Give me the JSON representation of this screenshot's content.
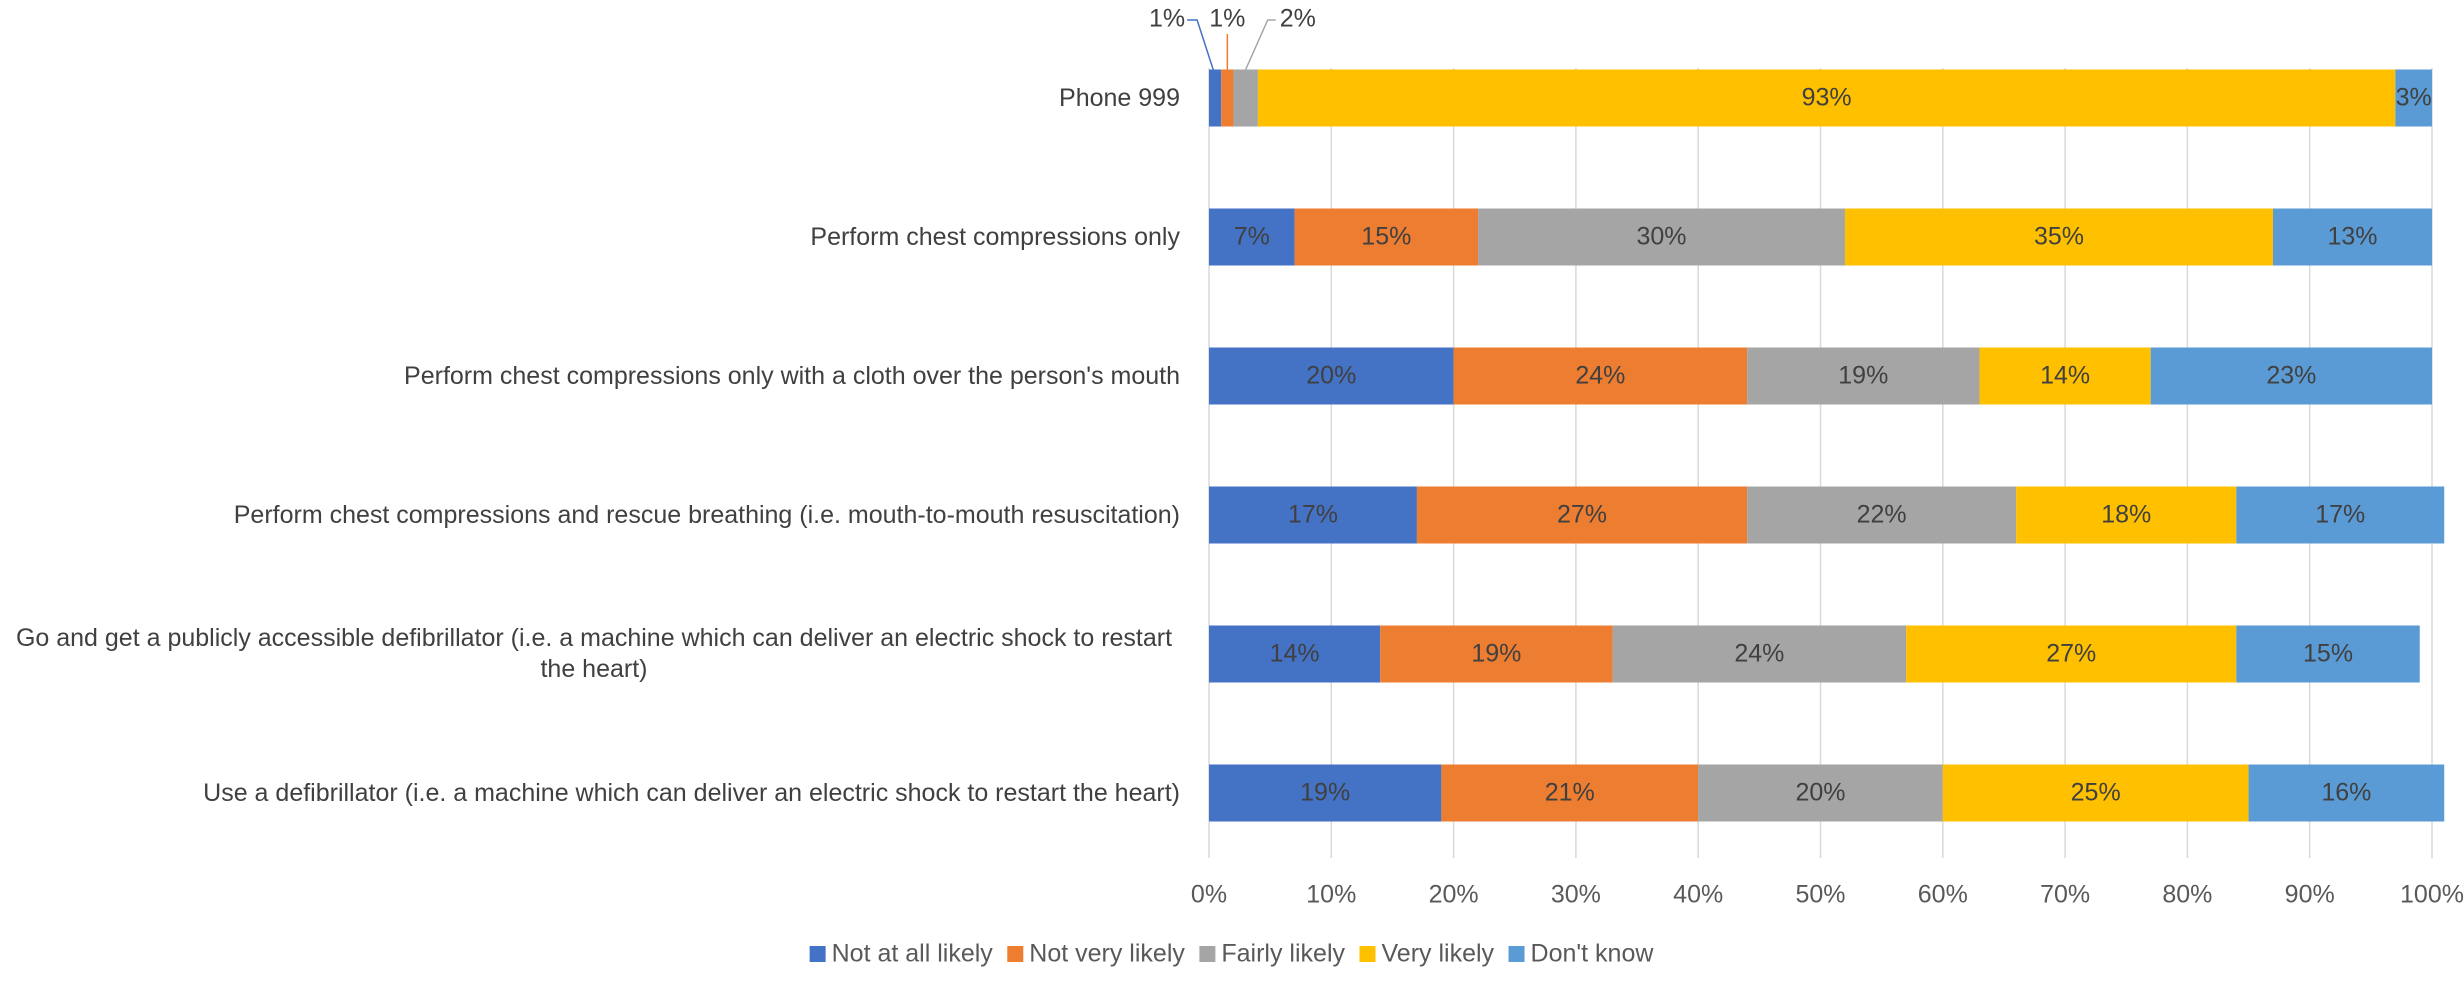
{
  "chart_data": {
    "type": "stacked_bar_horizontal",
    "categories": [
      "Phone 999",
      "Perform chest compressions only",
      "Perform chest compressions only with a cloth over the person's mouth",
      "Perform chest compressions and rescue breathing (i.e. mouth-to-mouth resuscitation)",
      "Go and get a publicly accessible defibrillator (i.e. a machine which can deliver an electric shock to restart the heart)",
      "Use a defibrillator (i.e. a machine which can deliver an electric shock to restart the heart)"
    ],
    "series": [
      {
        "name": "Not at all likely",
        "color": "#4472c4",
        "values": [
          1,
          7,
          20,
          17,
          14,
          19
        ],
        "value_labels": [
          "1%",
          "7%",
          "20%",
          "17%",
          "14%",
          "19%"
        ]
      },
      {
        "name": "Not very likely",
        "color": "#ed7d31",
        "values": [
          1,
          15,
          24,
          27,
          19,
          21
        ],
        "value_labels": [
          "1%",
          "15%",
          "24%",
          "27%",
          "19%",
          "21%"
        ]
      },
      {
        "name": "Fairly likely",
        "color": "#a5a5a5",
        "values": [
          2,
          30,
          19,
          22,
          24,
          20
        ],
        "value_labels": [
          "2%",
          "30%",
          "19%",
          "22%",
          "24%",
          "20%"
        ]
      },
      {
        "name": "Very likely",
        "color": "#ffc000",
        "values": [
          93,
          35,
          14,
          18,
          27,
          25
        ],
        "value_labels": [
          "93%",
          "35%",
          "14%",
          "18%",
          "27%",
          "25%"
        ]
      },
      {
        "name": "Don't know",
        "color": "#5b9bd5",
        "values": [
          3,
          13,
          23,
          17,
          15,
          16
        ],
        "value_labels": [
          "3%",
          "13%",
          "23%",
          "17%",
          "15%",
          "16%"
        ]
      }
    ],
    "xlim": [
      0,
      100
    ],
    "xticks": [
      {
        "value": 0,
        "label": "0%"
      },
      {
        "value": 10,
        "label": "10%"
      },
      {
        "value": 20,
        "label": "20%"
      },
      {
        "value": 30,
        "label": "30%"
      },
      {
        "value": 40,
        "label": "40%"
      },
      {
        "value": 50,
        "label": "50%"
      },
      {
        "value": 60,
        "label": "60%"
      },
      {
        "value": 70,
        "label": "70%"
      },
      {
        "value": 80,
        "label": "80%"
      },
      {
        "value": 90,
        "label": "90%"
      },
      {
        "value": 100,
        "label": "100%"
      }
    ],
    "grid": true,
    "legend": "bottom"
  }
}
